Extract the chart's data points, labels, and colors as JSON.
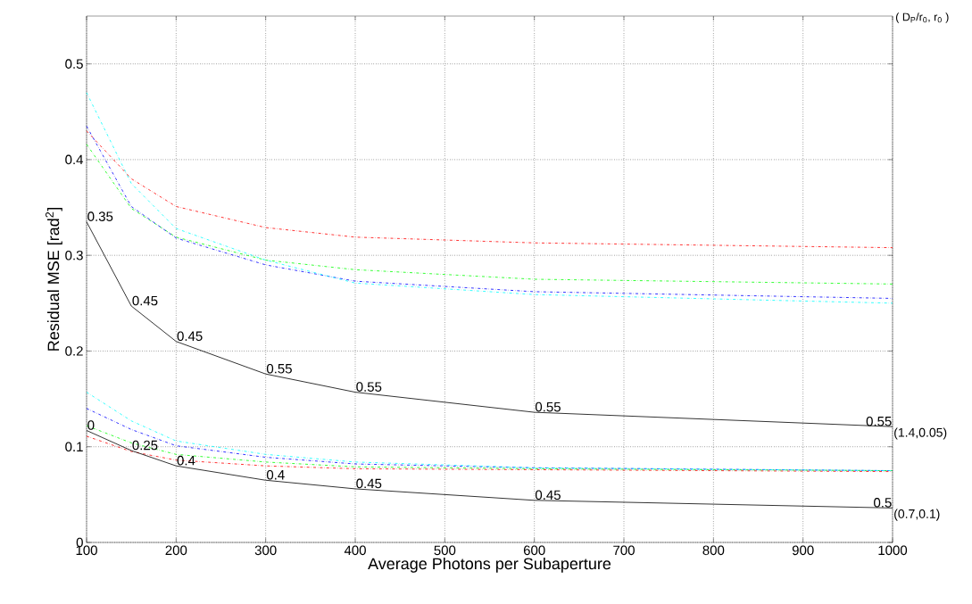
{
  "chart_data": {
    "type": "line",
    "xlabel": "Average Photons per Subaperture",
    "ylabel": "Residual MSE [rad$^{2}$]",
    "x": [
      100,
      150,
      200,
      300,
      400,
      600,
      1000
    ],
    "xlim": [
      100,
      1000
    ],
    "ylim": [
      0,
      0.55
    ],
    "xticks": [
      100,
      200,
      300,
      400,
      500,
      600,
      700,
      800,
      900,
      1000
    ],
    "yticks": [
      0,
      0.1,
      0.2,
      0.3,
      0.4,
      0.5
    ],
    "grid": true,
    "marker": "none",
    "series": [
      {
        "color": "#ff0000",
        "line_style": "dashdot",
        "values": [
          0.43,
          0.38,
          0.351,
          0.329,
          0.319,
          0.313,
          0.308
        ]
      },
      {
        "color": "#00ff00",
        "line_style": "dashdot",
        "values": [
          0.416,
          0.349,
          0.319,
          0.295,
          0.285,
          0.275,
          0.27
        ]
      },
      {
        "color": "#0000ff",
        "line_style": "dashdot",
        "values": [
          0.435,
          0.351,
          0.318,
          0.29,
          0.273,
          0.262,
          0.255
        ]
      },
      {
        "color": "#00ffff",
        "line_style": "dashdot",
        "values": [
          0.47,
          0.375,
          0.328,
          0.295,
          0.271,
          0.259,
          0.25
        ]
      },
      {
        "name": "(1.4,0.05)",
        "color": "#000000",
        "line_style": "solid",
        "values": [
          0.335,
          0.247,
          0.21,
          0.176,
          0.157,
          0.136,
          0.121
        ]
      },
      {
        "color": "#ff0000",
        "line_style": "dashdot",
        "values": [
          0.111,
          0.095,
          0.086,
          0.08,
          0.077,
          0.076,
          0.074
        ]
      },
      {
        "color": "#00ff00",
        "line_style": "dashdot",
        "values": [
          0.122,
          0.104,
          0.092,
          0.084,
          0.079,
          0.077,
          0.075
        ]
      },
      {
        "color": "#0000ff",
        "line_style": "dashdot",
        "values": [
          0.14,
          0.118,
          0.101,
          0.089,
          0.082,
          0.078,
          0.075
        ]
      },
      {
        "color": "#00ffff",
        "line_style": "dashdot",
        "values": [
          0.157,
          0.127,
          0.106,
          0.092,
          0.084,
          0.078,
          0.075
        ]
      },
      {
        "name": "(0.7,0.1)",
        "color": "#000000",
        "line_style": "solid",
        "values": [
          0.117,
          0.096,
          0.08,
          0.065,
          0.056,
          0.044,
          0.036
        ]
      }
    ],
    "annotations": [
      {
        "text": "0.35",
        "x": 100,
        "y": 0.335
      },
      {
        "text": "0.45",
        "x": 150,
        "y": 0.247
      },
      {
        "text": "0.45",
        "x": 200,
        "y": 0.21
      },
      {
        "text": "0.55",
        "x": 300,
        "y": 0.176
      },
      {
        "text": "0.55",
        "x": 400,
        "y": 0.157
      },
      {
        "text": "0.55",
        "x": 600,
        "y": 0.136
      },
      {
        "text": "0.55",
        "x": 1000,
        "y": 0.121
      },
      {
        "text": "0",
        "x": 100,
        "y": 0.117
      },
      {
        "text": "0.25",
        "x": 150,
        "y": 0.096
      },
      {
        "text": "0.4",
        "x": 200,
        "y": 0.08
      },
      {
        "text": "0.4",
        "x": 300,
        "y": 0.065
      },
      {
        "text": "0.45",
        "x": 400,
        "y": 0.056
      },
      {
        "text": "0.45",
        "x": 600,
        "y": 0.044
      },
      {
        "text": "0.5",
        "x": 1000,
        "y": 0.036
      },
      "( D$_{P}$/r$_{0}$, r$_{0}$ )"
    ]
  }
}
